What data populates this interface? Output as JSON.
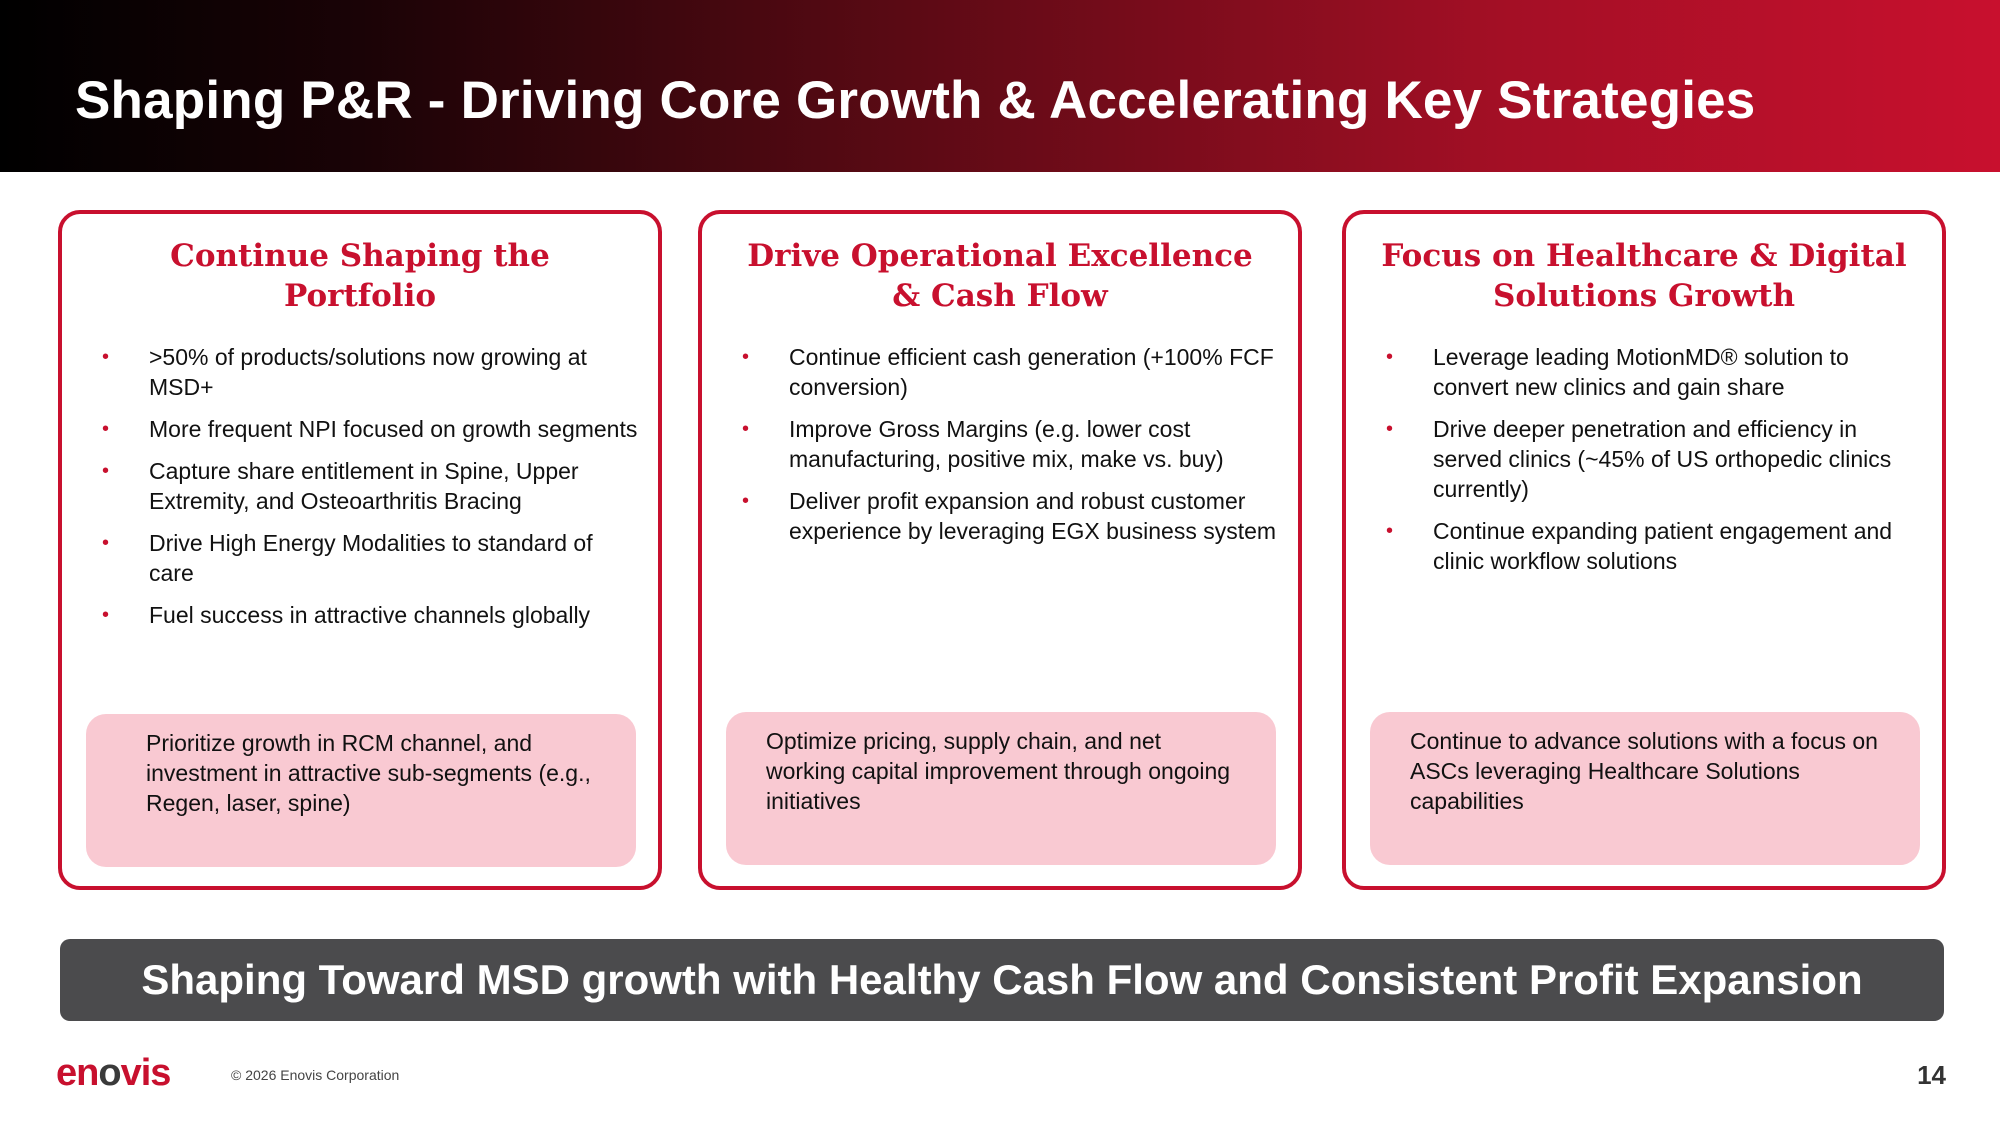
{
  "slide": {
    "title": "Shaping P&R - Driving Core Growth & Accelerating Key Strategies",
    "accent_color": "#c8102e",
    "note_color": "#f9c9d2",
    "banner_color": "#4b4b4d"
  },
  "cards": [
    {
      "heading": "Continue Shaping the Portfolio",
      "bullets": [
        ">50% of products/solutions now growing at MSD+",
        "More frequent NPI focused on growth segments",
        "Capture share entitlement in Spine, Upper Extremity, and Osteoarthritis Bracing",
        "Drive High Energy Modalities to standard of care",
        "Fuel success in attractive channels globally"
      ],
      "note": "Prioritize growth in RCM channel, and investment in attractive sub-segments (e.g., Regen, laser, spine)"
    },
    {
      "heading": "Drive Operational Excellence & Cash Flow",
      "bullets": [
        "Continue efficient cash generation (+100% FCF conversion)",
        "Improve Gross Margins (e.g. lower cost manufacturing, positive mix, make vs. buy)",
        "Deliver profit expansion and robust customer experience by leveraging EGX business system"
      ],
      "note": "Optimize pricing, supply chain, and net working capital improvement through ongoing initiatives"
    },
    {
      "heading": "Focus on Healthcare & Digital Solutions Growth",
      "bullets": [
        "Leverage leading MotionMD® solution to convert new clinics and gain share",
        "Drive deeper penetration and efficiency in served clinics (~45% of US orthopedic clinics currently)",
        "Continue expanding patient engagement and clinic workflow solutions"
      ],
      "note": "Continue to advance solutions with a focus on ASCs leveraging Healthcare Solutions capabilities"
    }
  ],
  "banner": "Shaping Toward MSD growth with Healthy Cash Flow and Consistent Profit Expansion",
  "footer": {
    "logo_text_a": "en",
    "logo_text_o": "o",
    "logo_text_b": "vis",
    "copyright": "© 2026 Enovis Corporation",
    "page_number": "14"
  }
}
